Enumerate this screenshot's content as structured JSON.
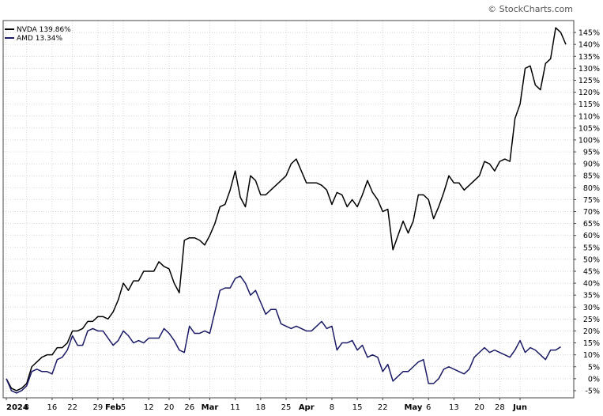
{
  "watermark": "© StockCharts.com",
  "chart_data": {
    "type": "line",
    "title": "",
    "xlabel": "",
    "ylabel": "",
    "ylim": [
      -8,
      150
    ],
    "y_ticks": [
      -5,
      0,
      5,
      10,
      15,
      20,
      25,
      30,
      35,
      40,
      45,
      50,
      55,
      60,
      65,
      70,
      75,
      80,
      85,
      90,
      95,
      100,
      105,
      110,
      115,
      120,
      125,
      130,
      135,
      140,
      145
    ],
    "y_tick_suffix": "%",
    "grid": true,
    "legend_position": "top-left",
    "x_ticks": [
      {
        "label": "2024",
        "i": 0,
        "bold": true
      },
      {
        "label": "8",
        "i": 4
      },
      {
        "label": "16",
        "i": 9
      },
      {
        "label": "22",
        "i": 13
      },
      {
        "label": "29",
        "i": 18
      },
      {
        "label": "Feb",
        "i": 21,
        "bold": true
      },
      {
        "label": "5",
        "i": 23
      },
      {
        "label": "12",
        "i": 28
      },
      {
        "label": "20",
        "i": 32
      },
      {
        "label": "26",
        "i": 36
      },
      {
        "label": "Mar",
        "i": 40,
        "bold": true
      },
      {
        "label": "11",
        "i": 45
      },
      {
        "label": "18",
        "i": 50
      },
      {
        "label": "25",
        "i": 55
      },
      {
        "label": "Apr",
        "i": 59,
        "bold": true
      },
      {
        "label": "8",
        "i": 64
      },
      {
        "label": "15",
        "i": 69
      },
      {
        "label": "22",
        "i": 74
      },
      {
        "label": "May",
        "i": 80,
        "bold": true
      },
      {
        "label": "6",
        "i": 83
      },
      {
        "label": "13",
        "i": 88
      },
      {
        "label": "20",
        "i": 93
      },
      {
        "label": "28",
        "i": 97
      },
      {
        "label": "Jun",
        "i": 101,
        "bold": true
      }
    ],
    "series": [
      {
        "name": "NVDA 139.86%",
        "color": "#000000",
        "values": [
          0,
          -4,
          -5,
          -4,
          -2,
          5,
          7,
          9,
          10,
          10,
          13,
          13,
          15,
          20,
          20,
          21,
          24,
          24,
          26,
          26,
          25,
          28,
          33,
          40,
          37,
          41,
          41,
          45,
          45,
          45,
          49,
          47,
          46,
          40,
          36,
          58,
          59,
          59,
          58,
          56,
          60,
          65,
          72,
          73,
          79,
          87,
          76,
          72,
          85,
          83,
          77,
          77,
          79,
          81,
          83,
          85,
          90,
          92,
          87,
          82,
          82,
          82,
          81,
          79,
          73,
          78,
          77,
          72,
          75,
          72,
          77,
          83,
          78,
          75,
          70,
          71,
          54,
          60,
          66,
          61,
          66,
          77,
          77,
          75,
          67,
          72,
          78,
          85,
          82,
          82,
          79,
          81,
          83,
          85,
          91,
          90,
          87,
          91,
          92,
          91,
          109,
          115,
          130,
          131,
          123,
          121,
          132,
          134,
          147,
          145,
          140
        ]
      },
      {
        "name": "AMD 13.34%",
        "color": "#1a1a66",
        "values": [
          0,
          -5,
          -6,
          -5,
          -3,
          3,
          4,
          3,
          3,
          2,
          8,
          9,
          12,
          18,
          14,
          14,
          20,
          21,
          20,
          20,
          17,
          14,
          16,
          20,
          18,
          15,
          16,
          15,
          17,
          17,
          17,
          21,
          19,
          16,
          12,
          11,
          22,
          19,
          19,
          20,
          19,
          28,
          37,
          38,
          38,
          42,
          43,
          40,
          35,
          37,
          32,
          27,
          29,
          29,
          23,
          22,
          21,
          22,
          21,
          20,
          20,
          22,
          24,
          21,
          22,
          12,
          15,
          15,
          16,
          12,
          14,
          9,
          10,
          9,
          3,
          6,
          -1,
          1,
          3,
          3,
          5,
          7,
          8,
          -2,
          -2,
          0,
          4,
          5,
          4,
          3,
          2,
          4,
          9,
          11,
          13,
          11,
          12,
          11,
          10,
          9,
          12,
          16,
          11,
          13,
          12,
          10,
          8,
          12,
          12,
          13.34
        ]
      }
    ]
  }
}
